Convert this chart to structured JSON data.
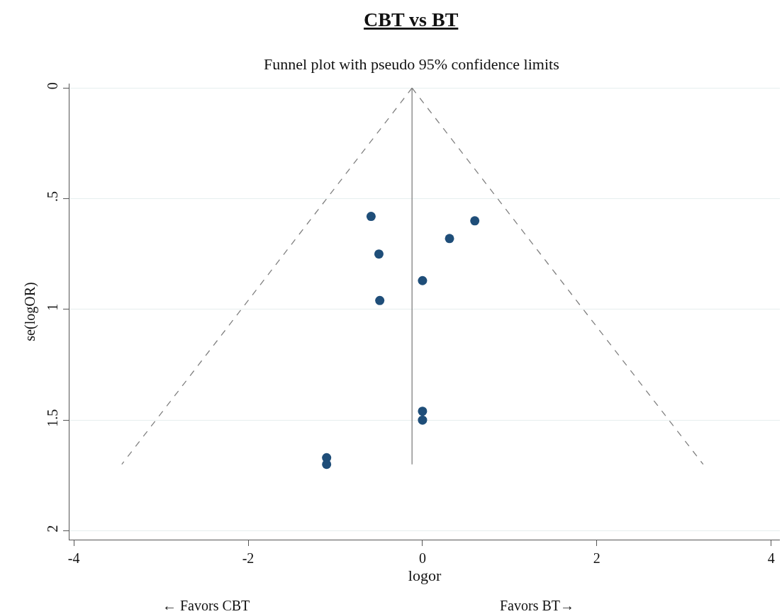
{
  "chart_data": {
    "type": "scatter",
    "title": "CBT vs BT",
    "subtitle": "Funnel plot with pseudo 95% confidence limits",
    "xlabel": "logor",
    "ylabel": "se(logOR)",
    "annotations": [
      "← Favors CBT",
      "Favors BT→"
    ],
    "series": [
      {
        "color": "#1f4e79",
        "marker": "circle",
        "x": [
          -0.59,
          0.6,
          0.31,
          -0.5,
          0.0,
          -0.49,
          0.0,
          0.0,
          -1.1,
          -1.1
        ],
        "values": [
          0.58,
          0.6,
          0.68,
          0.75,
          0.87,
          0.96,
          1.46,
          1.5,
          1.67,
          1.7
        ]
      },
      {
        "type": "line",
        "color": "#808080",
        "line_style": "dashed",
        "marker": "none",
        "x": [
          -0.12,
          -3.45
        ],
        "values": [
          0,
          1.7
        ]
      },
      {
        "type": "line",
        "color": "#808080",
        "line_style": "dashed",
        "marker": "none",
        "x": [
          -0.12,
          3.22
        ],
        "values": [
          0,
          1.7
        ]
      },
      {
        "type": "line",
        "color": "#808080",
        "line_style": "solid",
        "marker": "none",
        "x": [
          -0.12,
          -0.12
        ],
        "values": [
          0,
          1.7
        ]
      }
    ],
    "xlim": [
      -4.05,
      4.1
    ],
    "xticks": [
      -4,
      -2,
      0,
      2,
      4
    ],
    "ylim": [
      2.04,
      -0.02
    ],
    "yticks": [
      0,
      {
        "value": 0.5,
        "label": ".5"
      },
      1,
      {
        "value": 1.5,
        "label": "1.5"
      },
      2
    ],
    "grid": "y"
  }
}
